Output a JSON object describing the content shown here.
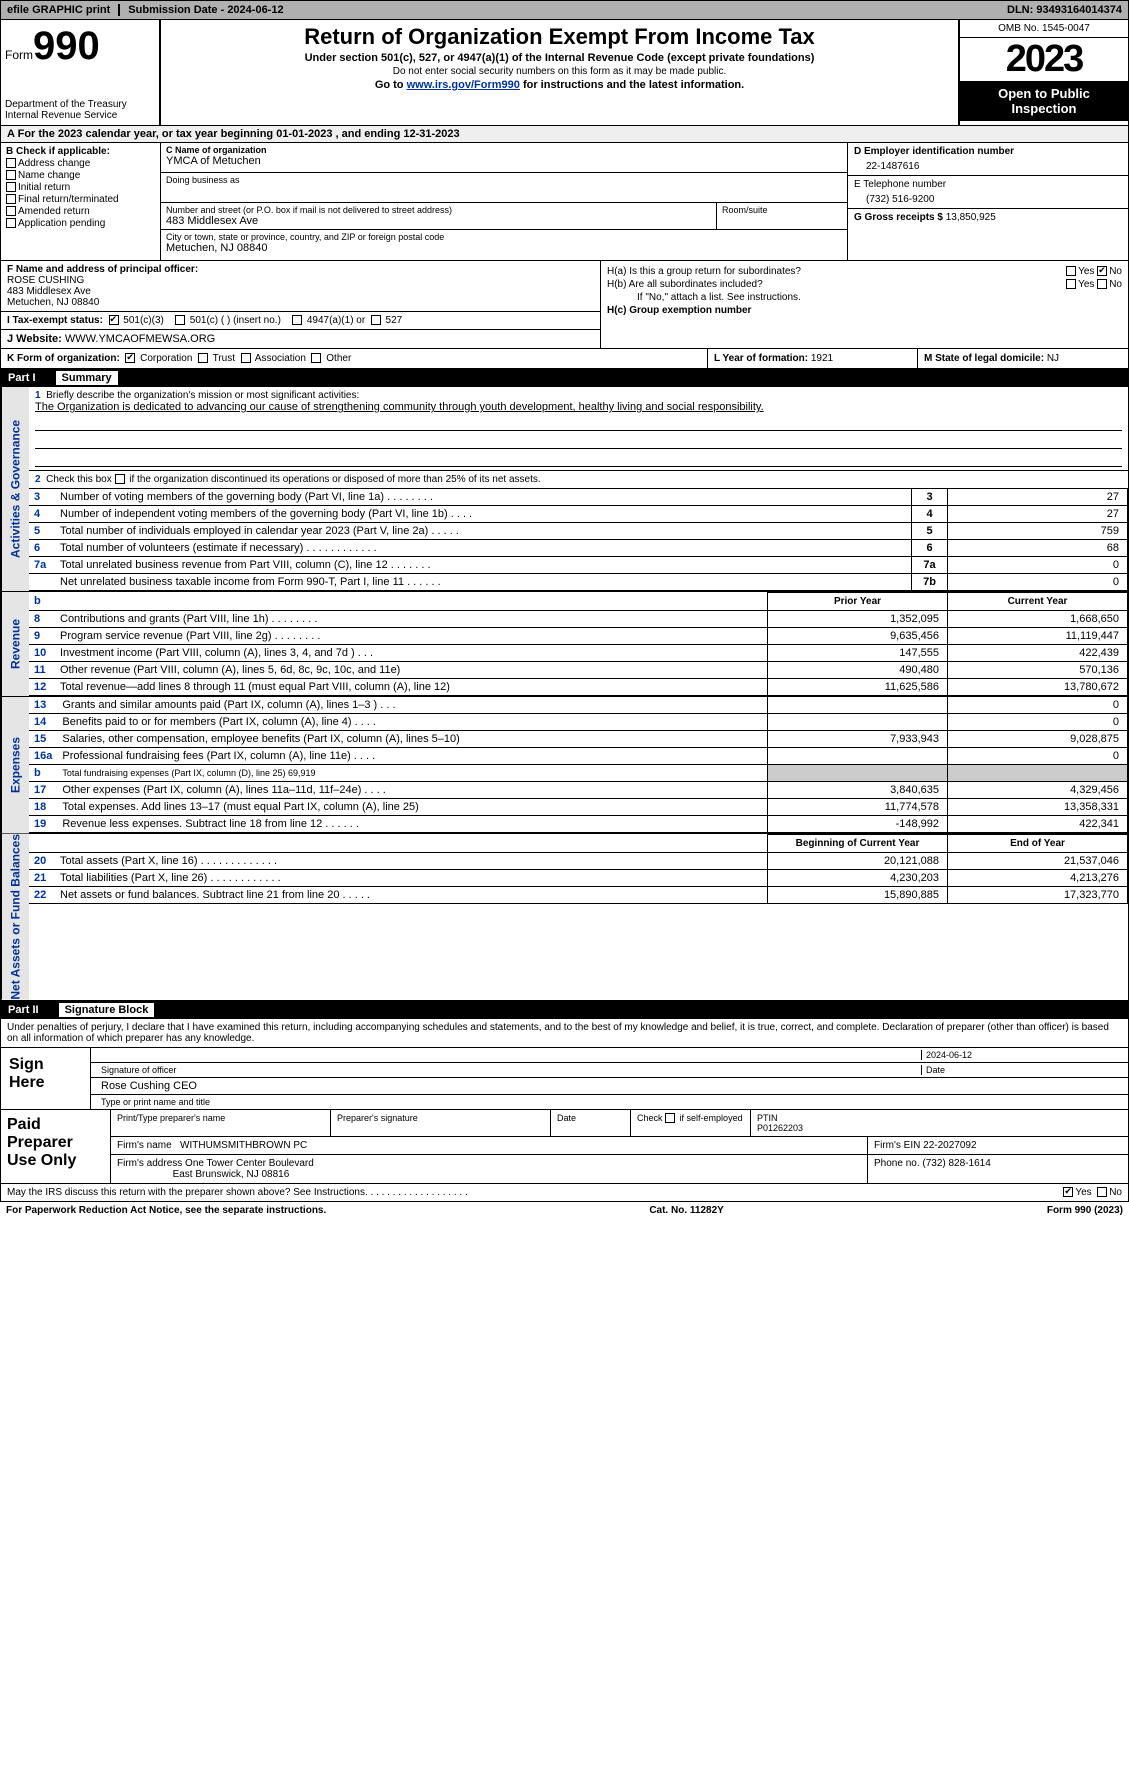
{
  "topbar": {
    "efile": "efile GRAPHIC print",
    "submission_label": "Submission Date - 2024-06-12",
    "dln_label": "DLN: 93493164014374"
  },
  "header": {
    "form_word": "Form",
    "form_number": "990",
    "dept": "Department of the Treasury\nInternal Revenue Service",
    "title": "Return of Organization Exempt From Income Tax",
    "sub1": "Under section 501(c), 527, or 4947(a)(1) of the Internal Revenue Code (except private foundations)",
    "sub2": "Do not enter social security numbers on this form as it may be made public.",
    "sub3_pre": "Go to ",
    "sub3_link": "www.irs.gov/Form990",
    "sub3_post": " for instructions and the latest information.",
    "omb": "OMB No. 1545-0047",
    "year": "2023",
    "open": "Open to Public Inspection"
  },
  "lineA": "For the 2023 calendar year, or tax year beginning 01-01-2023    , and ending 12-31-2023",
  "colB": {
    "hdr": "B Check if applicable:",
    "opts": [
      "Address change",
      "Name change",
      "Initial return",
      "Final return/terminated",
      "Amended return",
      "Application pending"
    ]
  },
  "colC": {
    "name_lbl": "C Name of organization",
    "name": "YMCA of Metuchen",
    "dba_lbl": "Doing business as",
    "addr_lbl": "Number and street (or P.O. box if mail is not delivered to street address)",
    "addr": "483 Middlesex Ave",
    "room_lbl": "Room/suite",
    "city_lbl": "City or town, state or province, country, and ZIP or foreign postal code",
    "city": "Metuchen, NJ  08840"
  },
  "colD": {
    "ein_lbl": "D Employer identification number",
    "ein": "22-1487616",
    "phone_lbl": "E Telephone number",
    "phone": "(732) 516-9200",
    "gross_lbl": "G Gross receipts $ ",
    "gross": "13,850,925"
  },
  "rowF": {
    "f_lbl": "F  Name and address of principal officer:",
    "f_name": "ROSE CUSHING",
    "f_addr1": "483 Middlesex Ave",
    "f_addr2": "Metuchen, NJ  08840",
    "i_lbl": "I   Tax-exempt status:",
    "i_501c3": "501(c)(3)",
    "i_501c": "501(c) (  ) (insert no.)",
    "i_4947": "4947(a)(1) or",
    "i_527": "527",
    "j_lbl": "J   Website: ",
    "j_val": " WWW.YMCAOFMEWSA.ORG"
  },
  "rowH": {
    "ha_lbl": "H(a)  Is this a group return for subordinates?",
    "hb_lbl": "H(b)  Are all subordinates included?",
    "hb_note": "If \"No,\" attach a list. See instructions.",
    "hc_lbl": "H(c)  Group exemption number ",
    "yes": "Yes",
    "no": "No"
  },
  "rowK": {
    "k_lbl": "K Form of organization:",
    "opts": [
      "Corporation",
      "Trust",
      "Association",
      "Other"
    ],
    "l_lbl": "L Year of formation: ",
    "l_val": "1921",
    "m_lbl": "M State of legal domicile: ",
    "m_val": "NJ"
  },
  "partI": {
    "num": "Part I",
    "title": "Summary"
  },
  "summary": {
    "q1_lbl": "Briefly describe the organization's mission or most significant activities:",
    "q1_val": "The Organization is dedicated to advancing our cause of strengthening community through youth development, healthy living and social responsibility.",
    "q2": "Check this box  ",
    "q2b": "  if the organization discontinued its operations or disposed of more than 25% of its net assets.",
    "side1": "Activities & Governance",
    "side2": "Revenue",
    "side3": "Expenses",
    "side4": "Net Assets or Fund Balances",
    "prior_year": "Prior Year",
    "current_year": "Current Year",
    "begin_year": "Beginning of Current Year",
    "end_year": "End of Year"
  },
  "lines_gov": [
    {
      "n": "3",
      "t": "Number of voting members of the governing body (Part VI, line 1a)  .   .   .   .   .   .   .   .",
      "box": "3",
      "v": "27"
    },
    {
      "n": "4",
      "t": "Number of independent voting members of the governing body (Part VI, line 1b)  .   .   .   .",
      "box": "4",
      "v": "27"
    },
    {
      "n": "5",
      "t": "Total number of individuals employed in calendar year 2023 (Part V, line 2a)  .   .   .   .   .",
      "box": "5",
      "v": "759"
    },
    {
      "n": "6",
      "t": "Total number of volunteers (estimate if necessary)    .   .   .   .   .   .   .   .   .   .   .   .",
      "box": "6",
      "v": "68"
    },
    {
      "n": "7a",
      "t": "Total unrelated business revenue from Part VIII, column (C), line 12   .   .   .   .   .   .   .",
      "box": "7a",
      "v": "0"
    },
    {
      "n": "",
      "t": "Net unrelated business taxable income from Form 990-T, Part I, line 11   .   .   .   .   .   .",
      "box": "7b",
      "v": "0"
    }
  ],
  "lines_rev": [
    {
      "n": "8",
      "t": "Contributions and grants (Part VIII, line 1h)   .   .   .   .   .   .   .   .",
      "p": "1,352,095",
      "c": "1,668,650"
    },
    {
      "n": "9",
      "t": "Program service revenue (Part VIII, line 2g)  .   .   .   .   .   .   .   .",
      "p": "9,635,456",
      "c": "11,119,447"
    },
    {
      "n": "10",
      "t": "Investment income (Part VIII, column (A), lines 3, 4, and 7d )   .   .   .",
      "p": "147,555",
      "c": "422,439"
    },
    {
      "n": "11",
      "t": "Other revenue (Part VIII, column (A), lines 5, 6d, 8c, 9c, 10c, and 11e)",
      "p": "490,480",
      "c": "570,136"
    },
    {
      "n": "12",
      "t": "Total revenue—add lines 8 through 11 (must equal Part VIII, column (A), line 12)",
      "p": "11,625,586",
      "c": "13,780,672"
    }
  ],
  "lines_exp": [
    {
      "n": "13",
      "t": "Grants and similar amounts paid (Part IX, column (A), lines 1–3 )  .   .   .",
      "p": "",
      "c": "0"
    },
    {
      "n": "14",
      "t": "Benefits paid to or for members (Part IX, column (A), line 4)   .   .   .   .",
      "p": "",
      "c": "0"
    },
    {
      "n": "15",
      "t": "Salaries, other compensation, employee benefits (Part IX, column (A), lines 5–10)",
      "p": "7,933,943",
      "c": "9,028,875"
    },
    {
      "n": "16a",
      "t": "Professional fundraising fees (Part IX, column (A), line 11e)    .   .   .   .",
      "p": "",
      "c": "0"
    },
    {
      "n": "b",
      "t": "Total fundraising expenses (Part IX, column (D), line 25) 69,919",
      "p": "GREY",
      "c": "GREY"
    },
    {
      "n": "17",
      "t": "Other expenses (Part IX, column (A), lines 11a–11d, 11f–24e)   .   .   .   .",
      "p": "3,840,635",
      "c": "4,329,456"
    },
    {
      "n": "18",
      "t": "Total expenses. Add lines 13–17 (must equal Part IX, column (A), line 25)",
      "p": "11,774,578",
      "c": "13,358,331"
    },
    {
      "n": "19",
      "t": "Revenue less expenses. Subtract line 18 from line 12    .   .   .   .   .   .",
      "p": "-148,992",
      "c": "422,341"
    }
  ],
  "lines_net": [
    {
      "n": "20",
      "t": "Total assets (Part X, line 16)  .   .   .   .   .   .   .   .   .   .   .   .   .",
      "p": "20,121,088",
      "c": "21,537,046"
    },
    {
      "n": "21",
      "t": "Total liabilities (Part X, line 26)  .   .   .   .   .   .   .   .   .   .   .   .",
      "p": "4,230,203",
      "c": "4,213,276"
    },
    {
      "n": "22",
      "t": "Net assets or fund balances. Subtract line 21 from line 20  .   .   .   .   .",
      "p": "15,890,885",
      "c": "17,323,770"
    }
  ],
  "partII": {
    "num": "Part II",
    "title": "Signature Block",
    "text": "Under penalties of perjury, I declare that I have examined this return, including accompanying schedules and statements, and to the best of my knowledge and belief, it is true, correct, and complete. Declaration of preparer (other than officer) is based on all information of which preparer has any knowledge."
  },
  "sign": {
    "label": "Sign Here",
    "date": "2024-06-12",
    "sig_lbl": "Signature of officer",
    "name": "Rose Cushing CEO",
    "type_lbl": "Type or print name and title"
  },
  "paid": {
    "label": "Paid Preparer Use Only",
    "h1": "Print/Type preparer's name",
    "h2": "Preparer's signature",
    "h3": "Date",
    "h4_pre": "Check",
    "h4_post": "if self-employed",
    "h5": "PTIN",
    "ptin": "P01262203",
    "firm_lbl": "Firm's name    ",
    "firm": "WITHUMSMITHBROWN PC",
    "ein_lbl": "Firm's EIN  ",
    "ein": "22-2027092",
    "addr_lbl": "Firm's address ",
    "addr1": "One Tower Center Boulevard",
    "addr2": "East Brunswick, NJ  08816",
    "phone_lbl": "Phone no. ",
    "phone": "(732) 828-1614"
  },
  "mayirs": {
    "text": "May the IRS discuss this return with the preparer shown above? See Instructions.    .   .   .   .   .   .   .   .   .   .   .   .   .   .   .   .   .   .",
    "yes": "Yes",
    "no": "No"
  },
  "footer": {
    "left": "For Paperwork Reduction Act Notice, see the separate instructions.",
    "mid": "Cat. No. 11282Y",
    "right": "Form 990 (2023)"
  }
}
